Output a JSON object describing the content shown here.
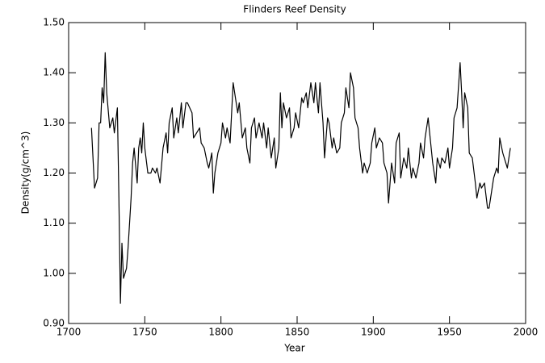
{
  "chart_data": {
    "type": "line",
    "title": "Flinders Reef Density",
    "x_label": "Year",
    "y_label": "Density(g/cm^3)",
    "xlim": [
      1700,
      2000
    ],
    "xticks": [
      1700,
      1750,
      1800,
      1850,
      1900,
      1950,
      2000
    ],
    "ylim": [
      0.9,
      1.5
    ],
    "yticks": [
      {
        "value": 0.9,
        "label": "0.90"
      },
      {
        "value": 1.0,
        "label": "1.00"
      },
      {
        "value": 1.1,
        "label": "1.10"
      },
      {
        "value": 1.2,
        "label": "1.20"
      },
      {
        "value": 1.3,
        "label": "1.30"
      },
      {
        "value": 1.4,
        "label": "1.40"
      },
      {
        "value": 1.5,
        "label": "1.50"
      }
    ],
    "grid": false,
    "series": [
      {
        "color": "#000000",
        "x": [
          1715,
          1717,
          1719,
          1720,
          1721,
          1722,
          1723,
          1724,
          1725,
          1727,
          1729,
          1730,
          1732,
          1733,
          1734,
          1735,
          1736,
          1738,
          1739,
          1741,
          1742,
          1743,
          1745,
          1746,
          1747,
          1748,
          1749,
          1750,
          1752,
          1754,
          1755,
          1757,
          1758,
          1760,
          1762,
          1764,
          1765,
          1766,
          1768,
          1769,
          1771,
          1772,
          1774,
          1775,
          1777,
          1778,
          1781,
          1782,
          1784,
          1786,
          1787,
          1789,
          1791,
          1792,
          1794,
          1795,
          1796,
          1798,
          1800,
          1801,
          1803,
          1804,
          1806,
          1808,
          1809,
          1811,
          1812,
          1814,
          1816,
          1817,
          1819,
          1820,
          1822,
          1823,
          1825,
          1827,
          1828,
          1830,
          1831,
          1833,
          1835,
          1836,
          1838,
          1839,
          1840,
          1841,
          1843,
          1845,
          1846,
          1848,
          1849,
          1851,
          1853,
          1854,
          1856,
          1857,
          1859,
          1861,
          1862,
          1864,
          1865,
          1867,
          1868,
          1870,
          1871,
          1873,
          1874,
          1876,
          1878,
          1879,
          1881,
          1882,
          1884,
          1885,
          1887,
          1888,
          1890,
          1891,
          1893,
          1894,
          1896,
          1898,
          1899,
          1901,
          1902,
          1904,
          1906,
          1907,
          1909,
          1910,
          1912,
          1914,
          1915,
          1917,
          1918,
          1920,
          1922,
          1923,
          1925,
          1926,
          1928,
          1930,
          1931,
          1933,
          1934,
          1936,
          1937,
          1939,
          1941,
          1942,
          1944,
          1945,
          1947,
          1949,
          1950,
          1952,
          1953,
          1955,
          1957,
          1958,
          1959,
          1960,
          1962,
          1963,
          1965,
          1967,
          1968,
          1970,
          1971,
          1973,
          1975,
          1976,
          1978,
          1979,
          1981,
          1982,
          1983,
          1985,
          1987,
          1988,
          1990
        ],
        "values": [
          1.29,
          1.17,
          1.19,
          1.3,
          1.3,
          1.37,
          1.34,
          1.44,
          1.36,
          1.29,
          1.31,
          1.28,
          1.33,
          1.15,
          0.94,
          1.06,
          0.99,
          1.01,
          1.05,
          1.15,
          1.22,
          1.25,
          1.18,
          1.25,
          1.27,
          1.24,
          1.3,
          1.25,
          1.2,
          1.2,
          1.21,
          1.2,
          1.21,
          1.18,
          1.25,
          1.28,
          1.24,
          1.3,
          1.33,
          1.27,
          1.31,
          1.28,
          1.34,
          1.29,
          1.34,
          1.34,
          1.32,
          1.27,
          1.28,
          1.29,
          1.26,
          1.25,
          1.22,
          1.21,
          1.24,
          1.16,
          1.2,
          1.24,
          1.26,
          1.3,
          1.27,
          1.29,
          1.26,
          1.38,
          1.36,
          1.32,
          1.34,
          1.27,
          1.29,
          1.25,
          1.22,
          1.29,
          1.31,
          1.27,
          1.3,
          1.27,
          1.3,
          1.25,
          1.29,
          1.23,
          1.27,
          1.21,
          1.25,
          1.36,
          1.29,
          1.34,
          1.31,
          1.33,
          1.27,
          1.29,
          1.32,
          1.29,
          1.35,
          1.34,
          1.36,
          1.33,
          1.38,
          1.34,
          1.38,
          1.32,
          1.38,
          1.3,
          1.23,
          1.31,
          1.3,
          1.25,
          1.27,
          1.24,
          1.25,
          1.3,
          1.32,
          1.37,
          1.33,
          1.4,
          1.37,
          1.31,
          1.29,
          1.25,
          1.2,
          1.22,
          1.2,
          1.22,
          1.26,
          1.29,
          1.25,
          1.27,
          1.26,
          1.22,
          1.2,
          1.14,
          1.22,
          1.18,
          1.26,
          1.28,
          1.19,
          1.23,
          1.21,
          1.25,
          1.19,
          1.21,
          1.19,
          1.22,
          1.26,
          1.23,
          1.27,
          1.31,
          1.28,
          1.22,
          1.18,
          1.23,
          1.21,
          1.23,
          1.22,
          1.25,
          1.21,
          1.25,
          1.31,
          1.33,
          1.42,
          1.36,
          1.29,
          1.36,
          1.33,
          1.24,
          1.23,
          1.18,
          1.15,
          1.18,
          1.17,
          1.18,
          1.13,
          1.13,
          1.17,
          1.19,
          1.21,
          1.2,
          1.27,
          1.24,
          1.22,
          1.21,
          1.25
        ]
      }
    ]
  }
}
